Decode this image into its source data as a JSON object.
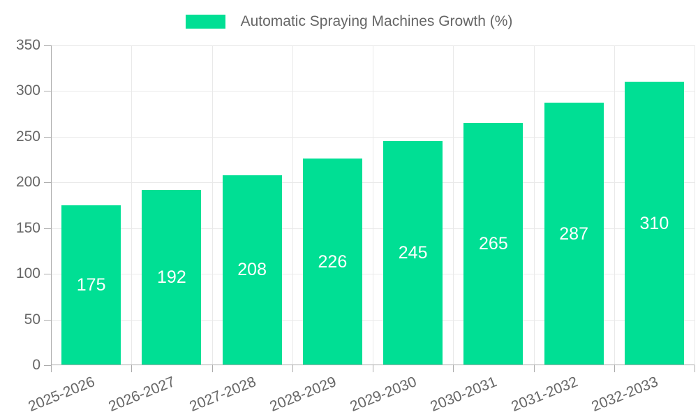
{
  "chart_data": {
    "type": "bar",
    "title": "Automatic Spraying Machines Growth (%)",
    "legend_position": "top",
    "categories": [
      "2025-2026",
      "2026-2027",
      "2027-2028",
      "2028-2029",
      "2029-2030",
      "2030-2031",
      "2031-2032",
      "2032-2033"
    ],
    "values": [
      175,
      192,
      208,
      226,
      245,
      265,
      287,
      310
    ],
    "value_labels_inside_bars": true,
    "xlabel": "",
    "ylabel": "",
    "ylim": [
      0,
      350
    ],
    "yticks": [
      0,
      50,
      100,
      150,
      200,
      250,
      300,
      350
    ],
    "grid": true,
    "colors": {
      "bar": "#00DF94",
      "value_label": "#FFFFFF",
      "axis_text": "#666666",
      "grid_line": "#E9E9E9",
      "axis_line": "#ABABAB",
      "background": "#FFFFFF"
    }
  }
}
